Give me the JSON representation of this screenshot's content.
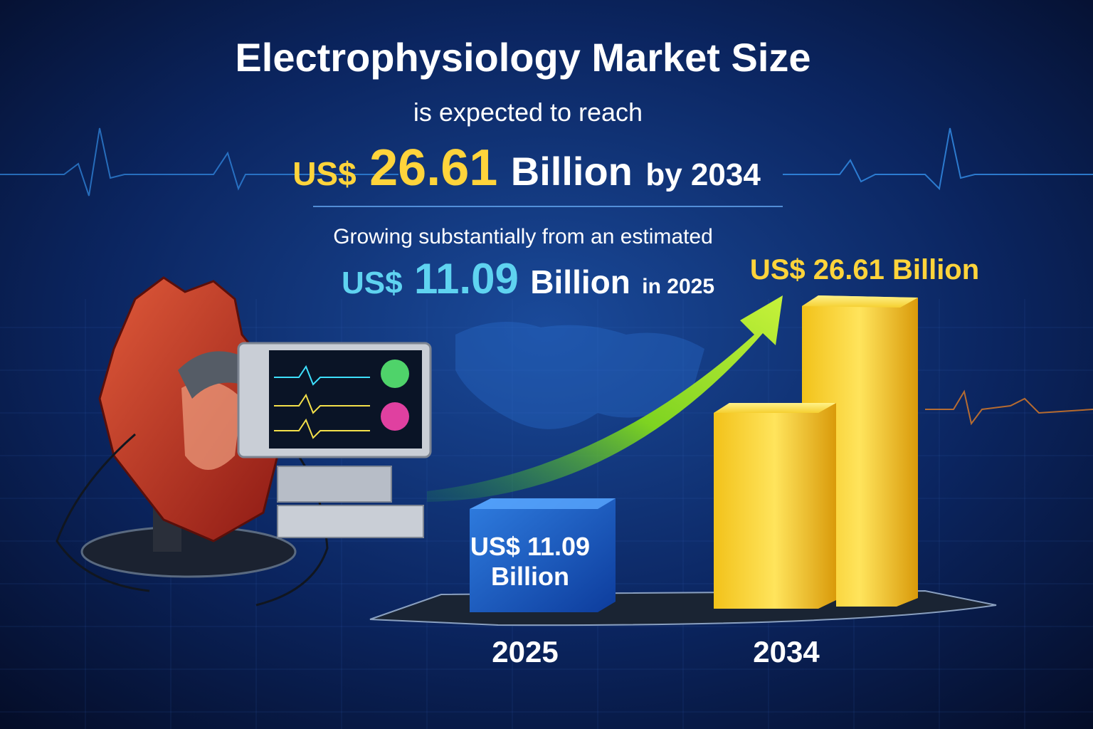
{
  "title": "Electrophysiology Market Size",
  "subtitle": "is expected to reach",
  "headline": {
    "currency": "US$",
    "value": "26.61",
    "unit": "Billion",
    "suffix": "by 2034"
  },
  "growth_text": "Growing substantially from an estimated",
  "base": {
    "currency": "US$",
    "value": "11.09",
    "unit": "Billion",
    "suffix": "in 2025"
  },
  "bars": [
    {
      "label": "US$ 11.09",
      "unit": "Billion",
      "year": "2025"
    },
    {
      "label": "US$ 26.61 Billion",
      "year": "2034"
    }
  ]
}
